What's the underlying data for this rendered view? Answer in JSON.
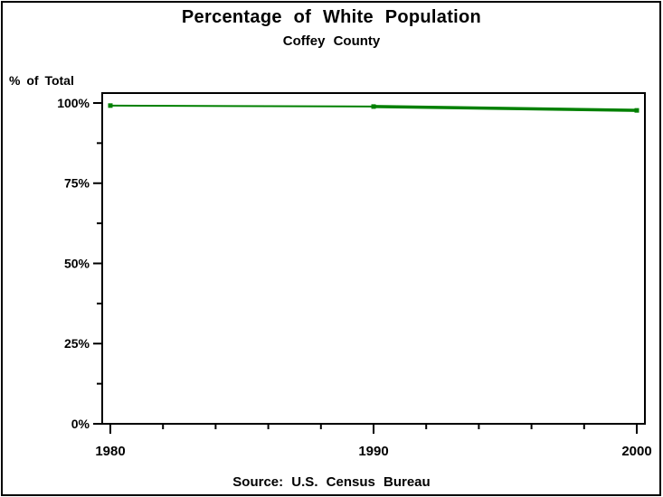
{
  "chart_data": {
    "type": "line",
    "title": "Percentage of White Population",
    "subtitle": "Coffey County",
    "ylabel": "% of Total",
    "xlabel": "",
    "footer": "Source: U.S. Census Bureau",
    "x": [
      1980,
      1990,
      2000
    ],
    "values": [
      99.2,
      98.9,
      97.7
    ],
    "xlim": [
      1980,
      2000
    ],
    "ylim": [
      0,
      100
    ],
    "x_major_ticks": [
      1980,
      1990,
      2000
    ],
    "x_minor_ticks": [
      1982,
      1984,
      1986,
      1988,
      1992,
      1994,
      1996,
      1998
    ],
    "y_major_ticks": [
      {
        "value": 0,
        "label": "0%"
      },
      {
        "value": 25,
        "label": "25%"
      },
      {
        "value": 50,
        "label": "50%"
      },
      {
        "value": 75,
        "label": "75%"
      },
      {
        "value": 100,
        "label": "100%"
      }
    ],
    "y_minor_ticks": [
      12.5,
      37.5,
      62.5,
      87.5
    ],
    "line_color": "#008000",
    "frame_color": "#000000",
    "grid": false,
    "legend": "none"
  }
}
